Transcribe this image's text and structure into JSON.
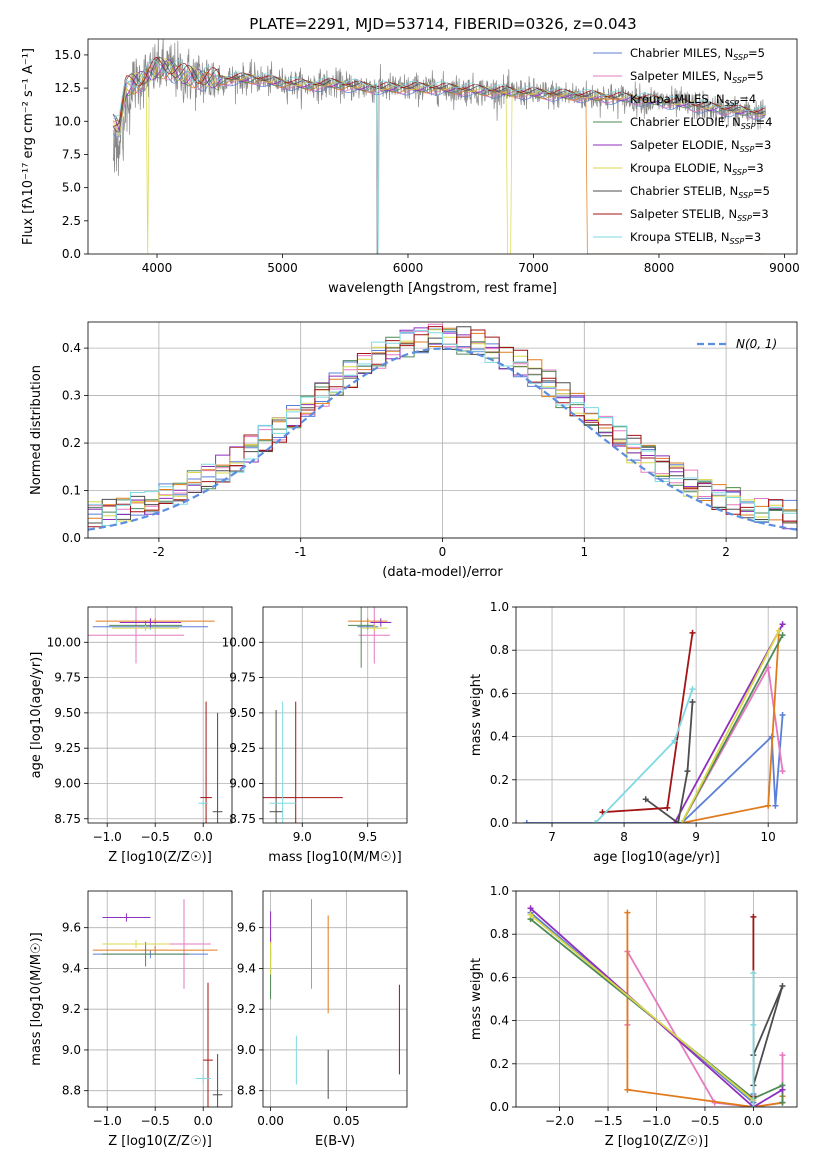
{
  "figure": {
    "title": "PLATE=2291, MJD=53714, FIBERID=0326, z=0.043"
  },
  "colors": {
    "Chabrier MILES": "#5b7fd6",
    "Salpeter MILES": "#e679c0",
    "Kroupa MILES": "#e07b1d",
    "Chabrier ELODIE": "#4f8a55",
    "Salpeter ELODIE": "#8e2fbe",
    "Kroupa ELODIE": "#d8d84a",
    "Chabrier STELIB": "#4d4d4d",
    "Salpeter STELIB": "#a31414",
    "Kroupa STELIB": "#7fd9e3",
    "normal_curve": "#5b8ee0",
    "spectrum_data": "#888888"
  },
  "chart_data": [
    {
      "id": "spectrum",
      "type": "line",
      "title": "PLATE=2291, MJD=53714, FIBERID=0326, z=0.043",
      "xlabel": "wavelength [Angstrom, rest frame]",
      "ylabel": "Flux [fλ10⁻¹⁷ erg cm⁻² s⁻¹ A⁻¹]",
      "xlim": [
        3450,
        9100
      ],
      "ylim": [
        0,
        16.2
      ],
      "xticks": [
        4000,
        5000,
        6000,
        7000,
        8000,
        9000
      ],
      "yticks": [
        0.0,
        2.5,
        5.0,
        7.5,
        10.0,
        12.5,
        15.0
      ],
      "ytick_labels": [
        "0.0",
        "2.5",
        "5.0",
        "7.5",
        "10.0",
        "12.5",
        "15.0"
      ],
      "legend_position": "top-right",
      "legend": [
        {
          "label": "Chabrier MILES, N",
          "sub": "SSP",
          "suffix": "=5",
          "color": "#5b7fd6"
        },
        {
          "label": "Salpeter MILES, N",
          "sub": "SSP",
          "suffix": "=5",
          "color": "#e679c0"
        },
        {
          "label": "Kroupa MILES, N",
          "sub": "SSP",
          "suffix": "=4",
          "color": "#e07b1d"
        },
        {
          "label": "Chabrier ELODIE, N",
          "sub": "SSP",
          "suffix": "=4",
          "color": "#4f8a55"
        },
        {
          "label": "Salpeter ELODIE, N",
          "sub": "SSP",
          "suffix": "=3",
          "color": "#8e2fbe"
        },
        {
          "label": "Kroupa ELODIE, N",
          "sub": "SSP",
          "suffix": "=3",
          "color": "#d8d84a"
        },
        {
          "label": "Chabrier STELIB, N",
          "sub": "SSP",
          "suffix": "=5",
          "color": "#4d4d4d"
        },
        {
          "label": "Salpeter STELIB, N",
          "sub": "SSP",
          "suffix": "=3",
          "color": "#a31414"
        },
        {
          "label": "Kroupa STELIB, N",
          "sub": "SSP",
          "suffix": "=3",
          "color": "#7fd9e3"
        }
      ],
      "continuum": {
        "x": [
          3650,
          3700,
          3750,
          3800,
          3850,
          3900,
          3950,
          4000,
          4100,
          4200,
          4300,
          4400,
          4500,
          4600,
          4700,
          4800,
          4900,
          5000,
          5200,
          5400,
          5600,
          5800,
          6000,
          6200,
          6400,
          6600,
          6800,
          7000,
          7200,
          7400,
          7600,
          7800,
          8000,
          8200,
          8400,
          8600,
          8800
        ],
        "y": [
          10.0,
          9.5,
          12.5,
          12.8,
          13.0,
          13.3,
          13.6,
          14.0,
          14.0,
          13.5,
          13.3,
          13.2,
          13.1,
          13.2,
          13.2,
          13.2,
          13.0,
          12.9,
          12.7,
          12.8,
          12.6,
          12.5,
          12.5,
          12.5,
          12.4,
          12.3,
          12.2,
          12.1,
          12.0,
          11.9,
          11.8,
          11.7,
          11.5,
          11.3,
          11.0,
          10.8,
          10.6
        ]
      }
    },
    {
      "id": "residuals",
      "type": "histogram",
      "xlabel": "(data-model)/error",
      "ylabel": "Normed distribution",
      "xlim": [
        -2.5,
        2.5
      ],
      "ylim": [
        0,
        0.455
      ],
      "xticks": [
        -2,
        -1,
        0,
        1,
        2
      ],
      "yticks": [
        0.0,
        0.1,
        0.2,
        0.3,
        0.4
      ],
      "ytick_labels": [
        "0.0",
        "0.1",
        "0.2",
        "0.3",
        "0.4"
      ],
      "bins": 50,
      "legend_position": "top-right",
      "legend_label": "N(0, 1)"
    },
    {
      "id": "age-vs-Z",
      "type": "scatter",
      "xlabel": "Z [log10(Z/Z☉)]",
      "ylabel": "age [log10(age/yr)]",
      "xlim": [
        -1.2,
        0.3
      ],
      "ylim": [
        8.72,
        10.25
      ],
      "xticks": [
        -1.0,
        -0.5,
        0.0
      ],
      "xtick_labels": [
        "−1.0",
        "−0.5",
        "0.0"
      ],
      "yticks": [
        8.75,
        9.0,
        9.25,
        9.5,
        9.75,
        10.0
      ],
      "ytick_labels": [
        "8.75",
        "9.00",
        "9.25",
        "9.50",
        "9.75",
        "10.00"
      ],
      "points": [
        {
          "series": "Chabrier MILES",
          "x": -0.55,
          "y": 10.11,
          "xerr": 0.6,
          "yerr": 0.02
        },
        {
          "series": "Salpeter MILES",
          "x": -0.7,
          "y": 10.05,
          "xerr": 0.5,
          "yerr": 0.2
        },
        {
          "series": "Kroupa MILES",
          "x": -0.5,
          "y": 10.15,
          "xerr": 0.62,
          "yerr": 0.02
        },
        {
          "series": "Chabrier ELODIE",
          "x": -0.6,
          "y": 10.12,
          "xerr": 0.38,
          "yerr": 0.03
        },
        {
          "series": "Salpeter ELODIE",
          "x": -0.55,
          "y": 10.14,
          "xerr": 0.32,
          "yerr": 0.03
        },
        {
          "series": "Kroupa ELODIE",
          "x": -0.6,
          "y": 10.1,
          "xerr": 0.35,
          "yerr": 0.02
        },
        {
          "series": "Chabrier STELIB",
          "x": 0.15,
          "y": 8.8,
          "xerr": 0.05,
          "yerr": 0.7
        },
        {
          "series": "Salpeter STELIB",
          "x": 0.03,
          "y": 8.9,
          "xerr": 0.06,
          "yerr": 0.68
        },
        {
          "series": "Kroupa STELIB",
          "x": 0.0,
          "y": 8.86,
          "xerr": 0.05,
          "yerr": 0.02
        }
      ]
    },
    {
      "id": "age-vs-mass",
      "type": "scatter",
      "xlabel": "mass [log10(M/M☉)]",
      "ylabel": "",
      "xlim": [
        8.7,
        9.8
      ],
      "ylim": [
        8.72,
        10.25
      ],
      "xticks": [
        9.0,
        9.5
      ],
      "xtick_labels": [
        "9.0",
        "9.5"
      ],
      "yticks": [
        8.75,
        9.0,
        9.25,
        9.5,
        9.75,
        10.0
      ],
      "ytick_labels": [
        "8.75",
        "9.00",
        "9.25",
        "9.50",
        "9.75",
        "10.00"
      ],
      "points": [
        {
          "series": "Chabrier MILES",
          "x": 9.5,
          "y": 10.11,
          "xerr": 0.08,
          "yerr": 0.02
        },
        {
          "series": "Salpeter MILES",
          "x": 9.55,
          "y": 10.05,
          "xerr": 0.12,
          "yerr": 0.2
        },
        {
          "series": "Kroupa MILES",
          "x": 9.5,
          "y": 10.15,
          "xerr": 0.15,
          "yerr": 0.02
        },
        {
          "series": "Chabrier ELODIE",
          "x": 9.45,
          "y": 10.12,
          "xerr": 0.1,
          "yerr": 0.3
        },
        {
          "series": "Salpeter ELODIE",
          "x": 9.6,
          "y": 10.14,
          "xerr": 0.08,
          "yerr": 0.03
        },
        {
          "series": "Kroupa ELODIE",
          "x": 9.55,
          "y": 10.1,
          "xerr": 0.1,
          "yerr": 0.02
        },
        {
          "series": "Chabrier STELIB",
          "x": 8.8,
          "y": 8.8,
          "xerr": 0.05,
          "yerr": 0.72
        },
        {
          "series": "Salpeter STELIB",
          "x": 8.95,
          "y": 8.9,
          "xerr": 0.36,
          "yerr": 0.68
        },
        {
          "series": "Kroupa STELIB",
          "x": 8.85,
          "y": 8.86,
          "xerr": 0.1,
          "yerr": 0.72
        }
      ]
    },
    {
      "id": "weight-vs-age",
      "type": "line",
      "xlabel": "age [log10(age/yr)]",
      "ylabel": "mass weight",
      "xlim": [
        6.5,
        10.4
      ],
      "ylim": [
        0,
        1.0
      ],
      "xticks": [
        7,
        8,
        9,
        10
      ],
      "xtick_labels": [
        "7",
        "8",
        "9",
        "10"
      ],
      "yticks": [
        0.0,
        0.2,
        0.4,
        0.6,
        0.8,
        1.0
      ],
      "ytick_labels": [
        "0.0",
        "0.2",
        "0.4",
        "0.6",
        "0.8",
        "1.0"
      ],
      "series": [
        {
          "name": "Chabrier MILES",
          "x": [
            6.65,
            8.8,
            10.05,
            10.1,
            10.2
          ],
          "y": [
            0.0,
            0.0,
            0.4,
            0.08,
            0.5
          ]
        },
        {
          "name": "Salpeter MILES",
          "x": [
            8.8,
            10.0,
            10.2
          ],
          "y": [
            0.0,
            0.72,
            0.24
          ]
        },
        {
          "name": "Kroupa MILES",
          "x": [
            8.8,
            10.0,
            10.15
          ],
          "y": [
            0.0,
            0.08,
            0.89
          ]
        },
        {
          "name": "Chabrier ELODIE",
          "x": [
            8.8,
            10.2
          ],
          "y": [
            0.0,
            0.87
          ]
        },
        {
          "name": "Salpeter ELODIE",
          "x": [
            8.7,
            10.2
          ],
          "y": [
            0.0,
            0.92
          ]
        },
        {
          "name": "Kroupa ELODIE",
          "x": [
            8.8,
            10.15
          ],
          "y": [
            0.0,
            0.89
          ]
        },
        {
          "name": "Chabrier STELIB",
          "x": [
            8.3,
            8.75,
            8.88,
            8.95
          ],
          "y": [
            0.11,
            0.0,
            0.24,
            0.56
          ]
        },
        {
          "name": "Salpeter STELIB",
          "x": [
            7.7,
            8.6,
            8.95
          ],
          "y": [
            0.05,
            0.07,
            0.88
          ]
        },
        {
          "name": "Kroupa STELIB",
          "x": [
            7.6,
            8.7,
            8.95
          ],
          "y": [
            0.0,
            0.38,
            0.62
          ]
        }
      ]
    },
    {
      "id": "mass-vs-Z",
      "type": "scatter",
      "xlabel": "Z [log10(Z/Z☉)]",
      "ylabel": "mass [log10(M/M☉)]",
      "xlim": [
        -1.2,
        0.3
      ],
      "ylim": [
        8.72,
        9.78
      ],
      "xticks": [
        -1.0,
        -0.5,
        0.0
      ],
      "xtick_labels": [
        "−1.0",
        "−0.5",
        "0.0"
      ],
      "yticks": [
        8.8,
        9.0,
        9.2,
        9.4,
        9.6
      ],
      "ytick_labels": [
        "8.8",
        "9.0",
        "9.2",
        "9.4",
        "9.6"
      ],
      "points": [
        {
          "series": "Chabrier MILES",
          "x": -0.55,
          "y": 9.47,
          "xerr": 0.6,
          "yerr": 0.02
        },
        {
          "series": "Salpeter MILES",
          "x": -0.2,
          "y": 9.52,
          "xerr": 0.28,
          "yerr": 0.22
        },
        {
          "series": "Kroupa MILES",
          "x": -0.5,
          "y": 9.49,
          "xerr": 0.65,
          "yerr": 0.02
        },
        {
          "series": "Chabrier ELODIE",
          "x": -0.6,
          "y": 9.47,
          "xerr": 0.45,
          "yerr": 0.06
        },
        {
          "series": "Salpeter ELODIE",
          "x": -0.8,
          "y": 9.65,
          "xerr": 0.25,
          "yerr": 0.02
        },
        {
          "series": "Kroupa ELODIE",
          "x": -0.7,
          "y": 9.52,
          "xerr": 0.35,
          "yerr": 0.02
        },
        {
          "series": "Chabrier STELIB",
          "x": 0.15,
          "y": 8.78,
          "xerr": 0.05,
          "yerr": 0.2
        },
        {
          "series": "Salpeter STELIB",
          "x": 0.05,
          "y": 8.95,
          "xerr": 0.05,
          "yerr": 0.38
        },
        {
          "series": "Kroupa STELIB",
          "x": 0.0,
          "y": 8.86,
          "xerr": 0.08,
          "yerr": 0.02
        }
      ]
    },
    {
      "id": "mass-vs-ebv",
      "type": "scatter",
      "xlabel": "E(B-V)",
      "ylabel": "",
      "xlim": [
        -0.005,
        0.09
      ],
      "ylim": [
        8.72,
        9.78
      ],
      "xticks": [
        0.0,
        0.05
      ],
      "xtick_labels": [
        "0.00",
        "0.05"
      ],
      "yticks": [
        8.8,
        9.0,
        9.2,
        9.4,
        9.6
      ],
      "ytick_labels": [
        "8.8",
        "9.0",
        "9.2",
        "9.4",
        "9.6"
      ],
      "points": [
        {
          "series": "Chabrier MILES",
          "x": 0.0,
          "y": 9.47,
          "xerr": 0.0,
          "yerr": 0.02
        },
        {
          "series": "Salpeter MILES",
          "x": 0.027,
          "y": 9.52,
          "xerr": 0.0,
          "yerr": 0.22
        },
        {
          "series": "Kroupa MILES",
          "x": 0.038,
          "y": 9.42,
          "xerr": 0.0,
          "yerr": 0.24
        },
        {
          "series": "Chabrier ELODIE",
          "x": 0.0,
          "y": 9.4,
          "xerr": 0.0,
          "yerr": 0.15
        },
        {
          "series": "Salpeter ELODIE",
          "x": 0.0,
          "y": 9.6,
          "xerr": 0.0,
          "yerr": 0.08
        },
        {
          "series": "Kroupa ELODIE",
          "x": 0.0,
          "y": 9.45,
          "xerr": 0.0,
          "yerr": 0.08
        },
        {
          "series": "Chabrier STELIB",
          "x": 0.038,
          "y": 8.88,
          "xerr": 0.0,
          "yerr": 0.12
        },
        {
          "series": "Salpeter STELIB",
          "x": 0.085,
          "y": 9.1,
          "xerr": 0.0,
          "yerr": 0.22
        },
        {
          "series": "Kroupa STELIB",
          "x": 0.017,
          "y": 8.95,
          "xerr": 0.0,
          "yerr": 0.12
        }
      ]
    },
    {
      "id": "weight-vs-Z",
      "type": "line",
      "xlabel": "Z [log10(Z/Z☉)]",
      "ylabel": "mass weight",
      "xlim": [
        -2.45,
        0.45
      ],
      "ylim": [
        0,
        1.0
      ],
      "xticks": [
        -2.0,
        -1.5,
        -1.0,
        -0.5,
        0.0
      ],
      "xtick_labels": [
        "−2.0",
        "−1.5",
        "−1.0",
        "−0.5",
        "0.0"
      ],
      "yticks": [
        0.0,
        0.2,
        0.4,
        0.6,
        0.8,
        1.0
      ],
      "ytick_labels": [
        "0.0",
        "0.2",
        "0.4",
        "0.6",
        "0.8",
        "1.0"
      ],
      "series": [
        {
          "name": "Chabrier MILES",
          "x": [
            -2.3,
            0.0,
            0.0
          ],
          "y": [
            0.9,
            0.02,
            0.06
          ]
        },
        {
          "name": "Salpeter MILES",
          "x": [
            -1.3,
            -1.3,
            -0.4,
            0.0,
            0.3,
            0.3
          ],
          "y": [
            0.38,
            0.72,
            0.02,
            0.0,
            0.02,
            0.24
          ]
        },
        {
          "name": "Kroupa MILES",
          "x": [
            -1.3,
            -1.3,
            0.0,
            0.3,
            0.3
          ],
          "y": [
            0.9,
            0.08,
            0.0,
            0.02,
            0.05
          ]
        },
        {
          "name": "Chabrier ELODIE",
          "x": [
            -2.3,
            0.0,
            0.3,
            0.3
          ],
          "y": [
            0.87,
            0.04,
            0.1,
            0.02
          ]
        },
        {
          "name": "Salpeter ELODIE",
          "x": [
            -2.3,
            0.0,
            0.3
          ],
          "y": [
            0.92,
            0.0,
            0.08
          ]
        },
        {
          "name": "Kroupa ELODIE",
          "x": [
            -2.3,
            0.0
          ],
          "y": [
            0.89,
            0.03
          ]
        },
        {
          "name": "Chabrier STELIB",
          "x": [
            0.0,
            0.0,
            0.3,
            0.0
          ],
          "y": [
            0.0,
            0.24,
            0.56,
            0.1
          ]
        },
        {
          "name": "Salpeter STELIB",
          "x": [
            0.0,
            0.0,
            0.0
          ],
          "y": [
            0.88,
            0.05,
            0.0
          ]
        },
        {
          "name": "Kroupa STELIB",
          "x": [
            0.0,
            0.0,
            0.0
          ],
          "y": [
            0.62,
            0.38,
            0.0
          ]
        }
      ]
    }
  ]
}
